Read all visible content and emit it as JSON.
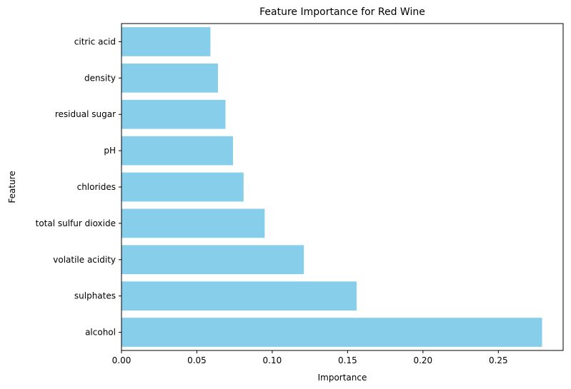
{
  "chart_data": {
    "type": "bar",
    "orientation": "horizontal",
    "title": "Feature Importance for Red Wine",
    "xlabel": "Importance",
    "ylabel": "Feature",
    "categories": [
      "alcohol",
      "sulphates",
      "volatile acidity",
      "total sulfur dioxide",
      "chlorides",
      "pH",
      "residual sugar",
      "density",
      "citric acid"
    ],
    "values": [
      0.279,
      0.156,
      0.121,
      0.095,
      0.081,
      0.074,
      0.069,
      0.064,
      0.059
    ],
    "xlim": [
      0,
      0.293
    ],
    "xticks": [
      0.0,
      0.05,
      0.1,
      0.15,
      0.2,
      0.25
    ],
    "xtick_labels": [
      "0.00",
      "0.05",
      "0.10",
      "0.15",
      "0.20",
      "0.25"
    ],
    "grid": false,
    "legend": "none",
    "bar_color": "#87CEEB"
  }
}
